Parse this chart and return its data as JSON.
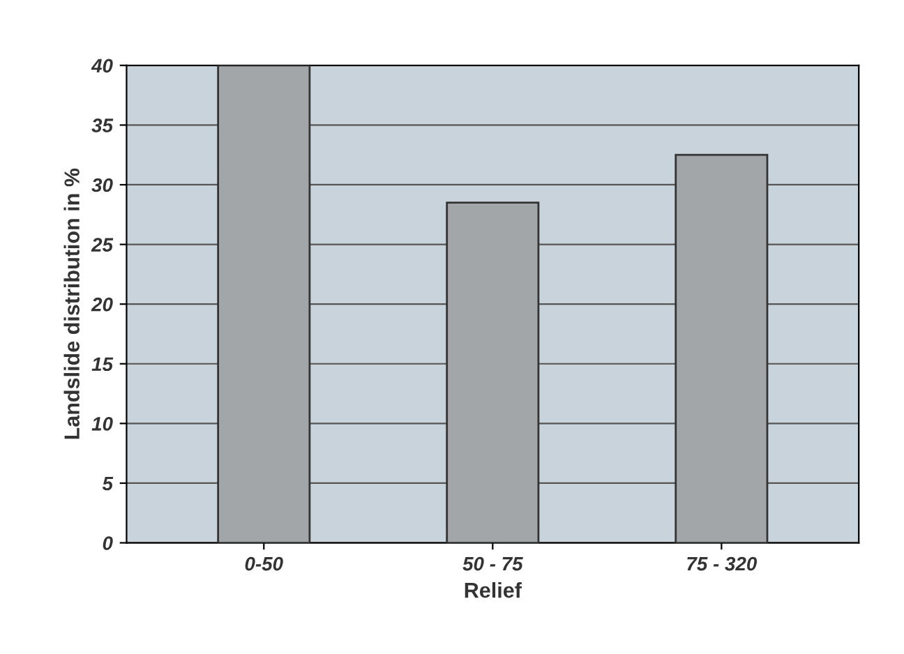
{
  "chart_data": {
    "type": "bar",
    "xlabel": "Relief",
    "ylabel": "Landslide distribution in %",
    "categories": [
      "0-50",
      "50 - 75",
      "75 - 320"
    ],
    "values": [
      40,
      28.5,
      32.5
    ],
    "color": "#a3a6a9",
    "ylim": [
      0,
      40
    ],
    "yticks": [
      0,
      5,
      10,
      15,
      20,
      25,
      30,
      35,
      40
    ],
    "grid": "y"
  }
}
